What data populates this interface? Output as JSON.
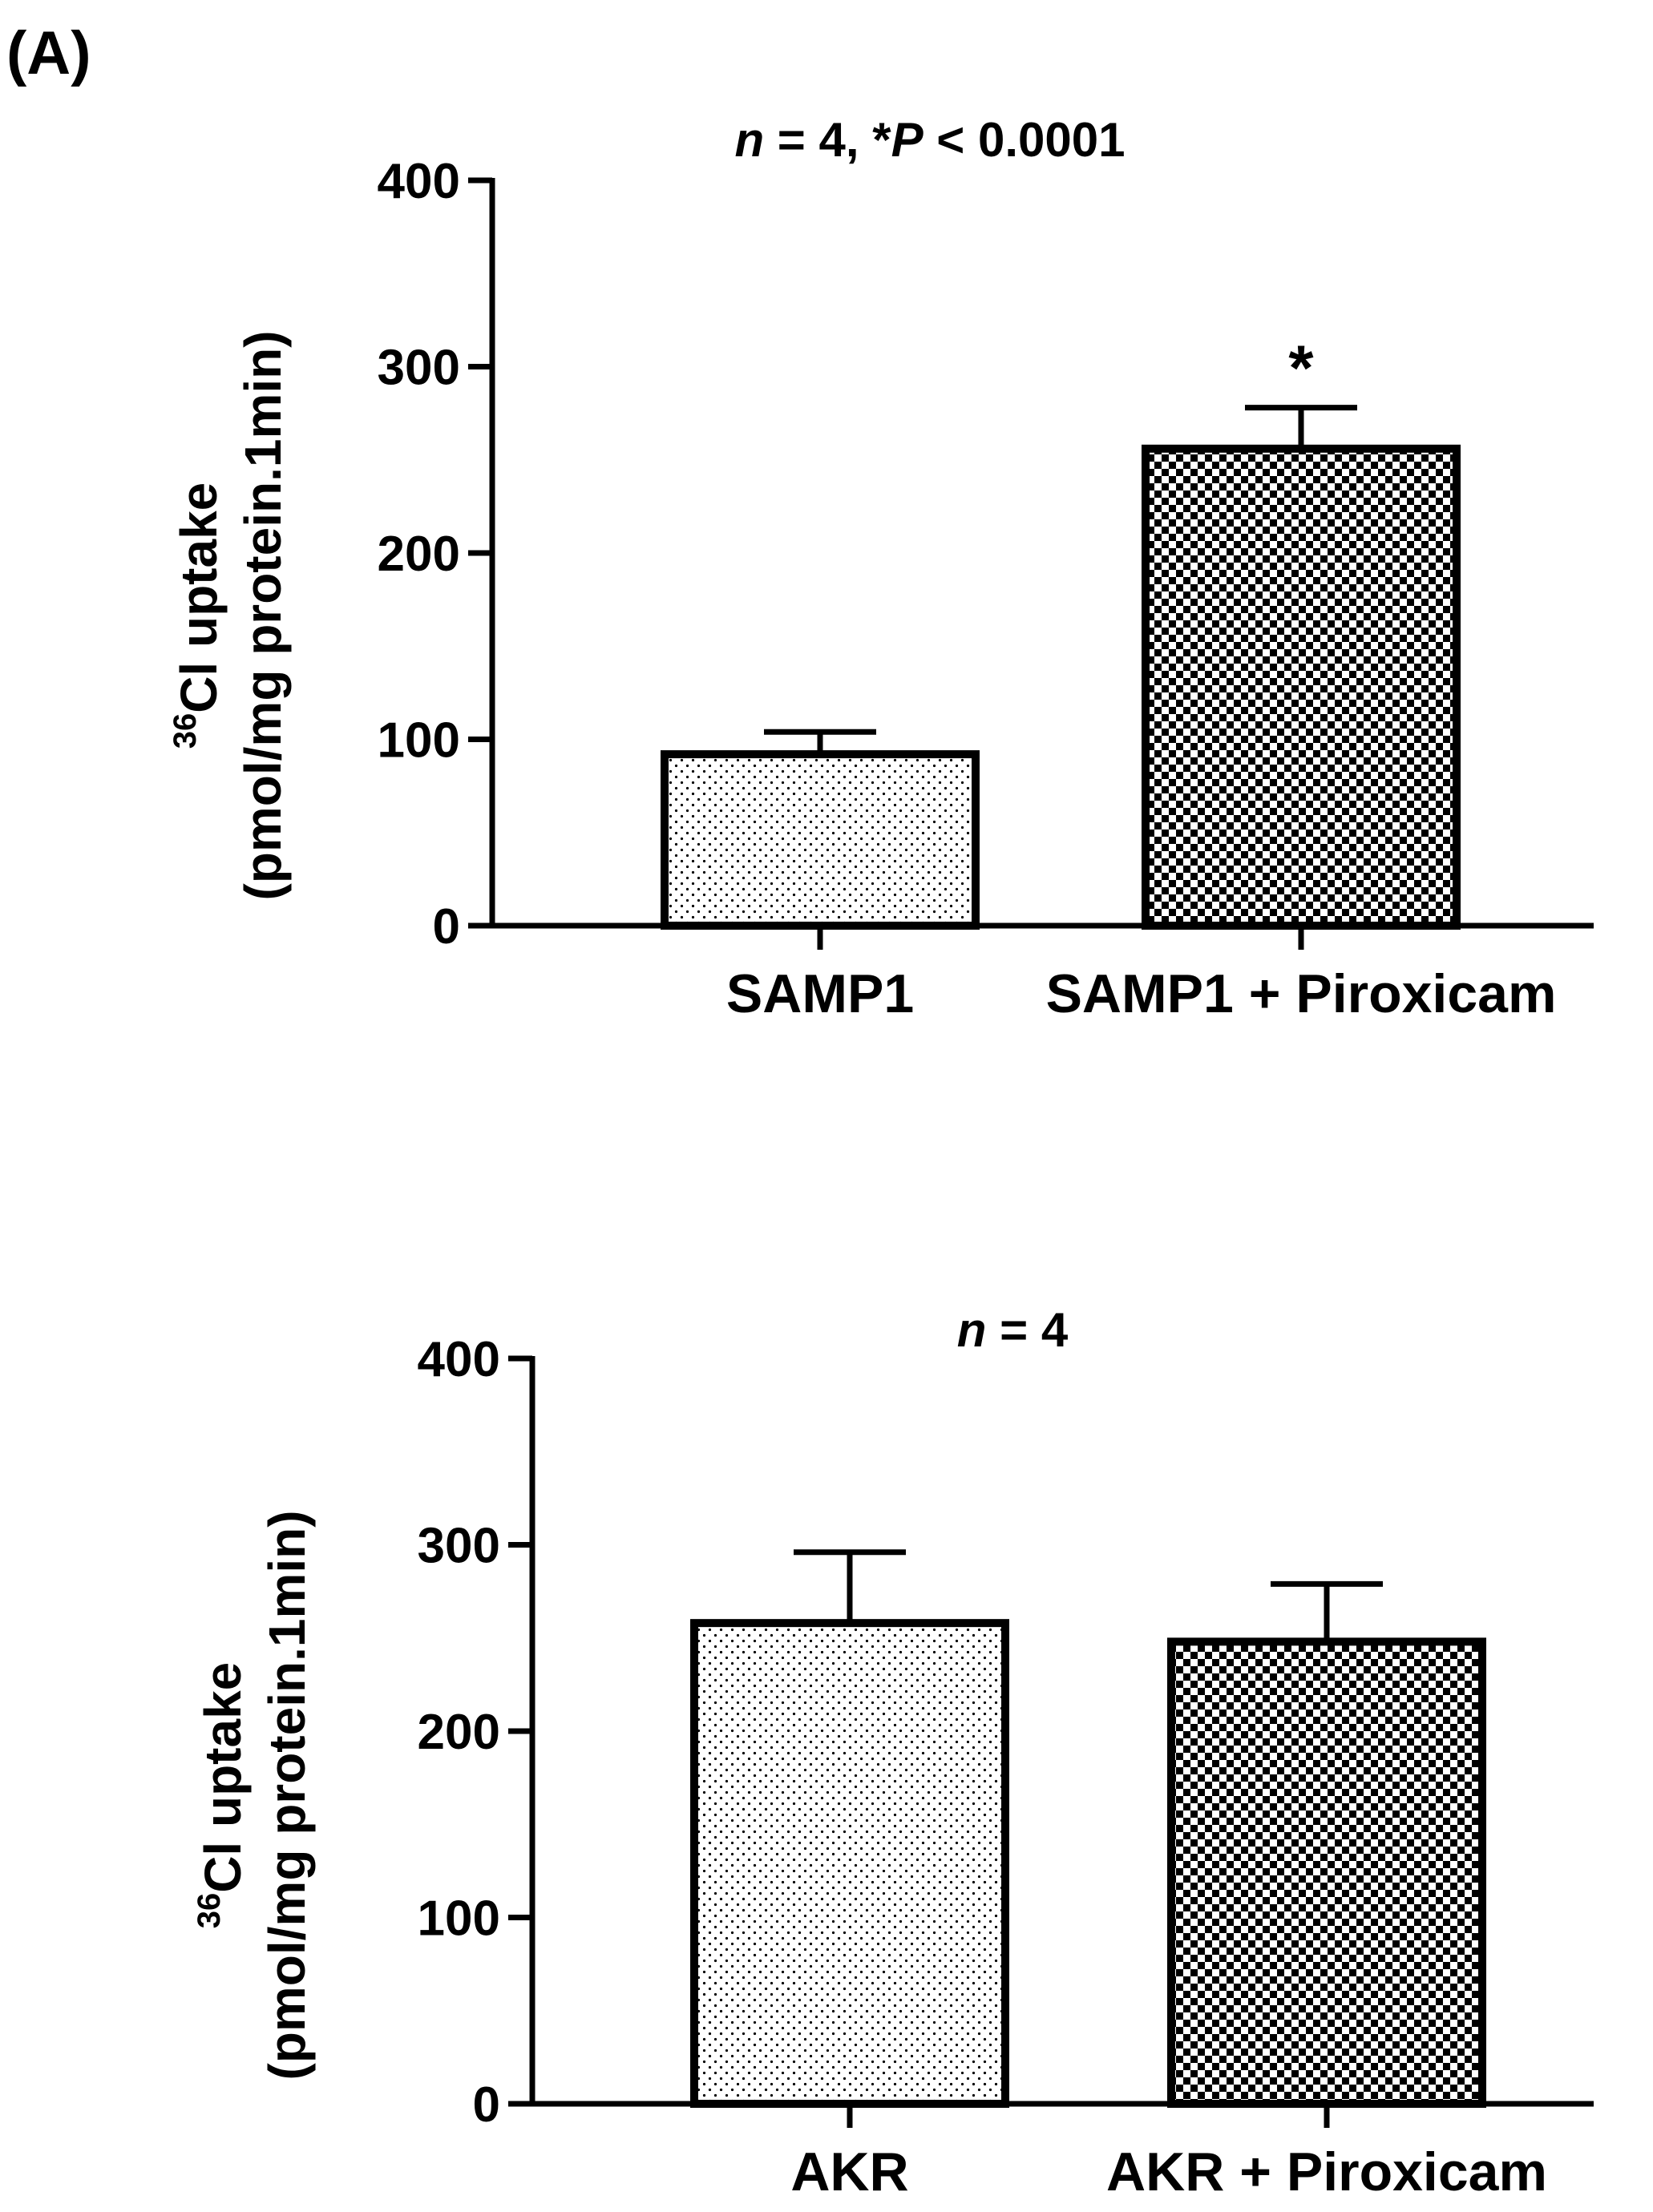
{
  "panel_label": "(A)",
  "chart_data": [
    {
      "type": "bar",
      "title": {
        "n_italic": "n",
        "n_rest": " = 4, *",
        "p_italic": "P",
        "p_rest": " < 0.0001"
      },
      "ylabel": {
        "sup": "36",
        "line1": "Cl uptake",
        "line2": "(pmol/mg protein.1min)"
      },
      "categories": [
        "SAMP1",
        "SAMP1 + Piroxicam"
      ],
      "values": [
        92,
        256
      ],
      "error": [
        12,
        22
      ],
      "patterns": [
        "dots",
        "checker"
      ],
      "significance": [
        "",
        "*"
      ],
      "ylim": [
        0,
        400
      ],
      "yticks": [
        0,
        100,
        200,
        300,
        400
      ]
    },
    {
      "type": "bar",
      "title": {
        "n_italic": "n",
        "n_rest": " = 4"
      },
      "ylabel": {
        "sup": "36",
        "line1": "Cl uptake",
        "line2": "(pmol/mg protein.1min)"
      },
      "categories": [
        "AKR",
        "AKR + Piroxicam"
      ],
      "values": [
        258,
        248
      ],
      "error": [
        38,
        31
      ],
      "patterns": [
        "dots",
        "checker"
      ],
      "significance": [
        "",
        ""
      ],
      "ylim": [
        0,
        400
      ],
      "yticks": [
        0,
        100,
        200,
        300,
        400
      ]
    }
  ]
}
